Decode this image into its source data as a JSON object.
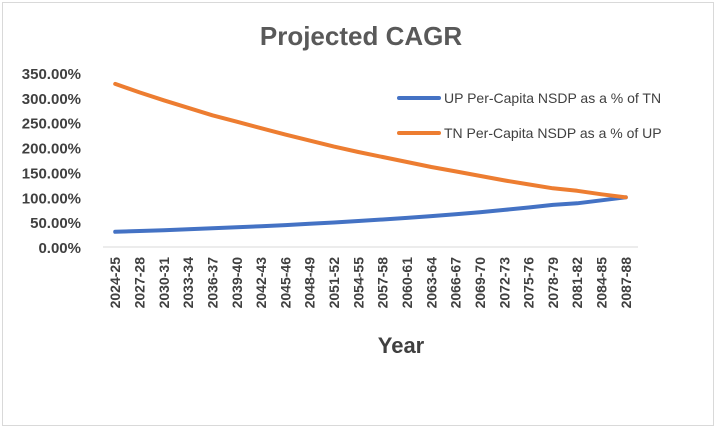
{
  "chart_data": {
    "type": "line",
    "title": "Projected CAGR",
    "xlabel": "Year",
    "ylabel": "",
    "ylim": [
      0,
      350
    ],
    "yticks": [
      "0.00%",
      "50.00%",
      "100.00%",
      "150.00%",
      "200.00%",
      "250.00%",
      "300.00%",
      "350.00%"
    ],
    "x_tick_labels": [
      "2024-25",
      "2027-28",
      "2030-31",
      "2033-34",
      "2036-37",
      "2039-40",
      "2042-43",
      "2045-46",
      "2048-49",
      "2051-52",
      "2054-55",
      "2057-58",
      "2060-61",
      "2063-64",
      "2066-67",
      "2069-70",
      "2072-73",
      "2075-76",
      "2078-79",
      "2081-82",
      "2084-85",
      "2087-88"
    ],
    "legend_position": "right",
    "series": [
      {
        "name": "UP Per-Capita NSDP as a % of TN",
        "color": "#4472C4",
        "values": [
          30.5,
          32.1,
          33.8,
          35.6,
          37.6,
          39.6,
          41.8,
          44.1,
          46.6,
          49.3,
          52.2,
          55.3,
          58.6,
          62.2,
          66.0,
          70.1,
          74.6,
          79.5,
          84.7,
          88.0,
          94.0,
          100.0
        ]
      },
      {
        "name": "TN Per-Capita NSDP as a % of UP",
        "color": "#ED7D31",
        "values": [
          328.0,
          311.0,
          295.0,
          280.0,
          265.0,
          252.0,
          239.0,
          226.0,
          214.0,
          202.0,
          191.0,
          181.0,
          171.0,
          161.0,
          152.0,
          143.0,
          134.0,
          126.0,
          118.0,
          113.0,
          106.0,
          100.0
        ]
      }
    ]
  }
}
